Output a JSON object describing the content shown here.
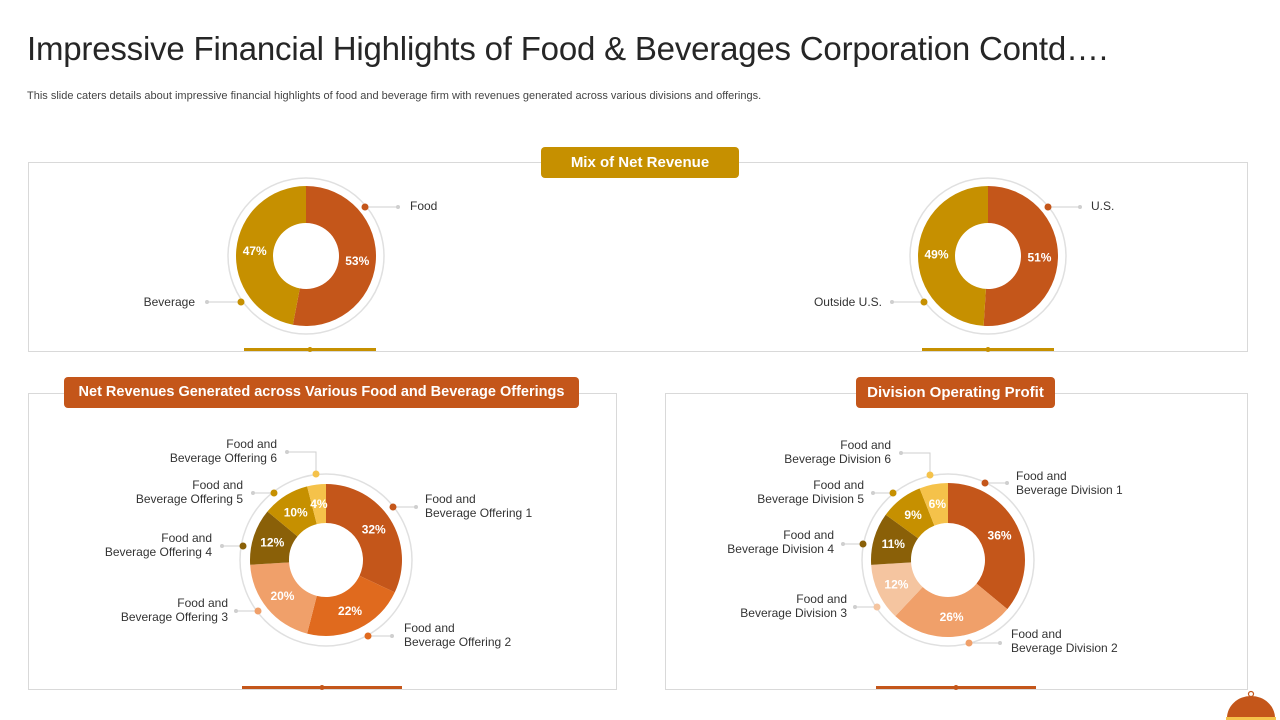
{
  "slide": {
    "title": "Impressive Financial Highlights of Food & Beverages Corporation Contd….",
    "subtitle": "This slide caters details about impressive financial highlights of food and beverage firm with revenues generated across various divisions and offerings."
  },
  "sections": {
    "mix": {
      "title": "Mix of Net Revenue",
      "color": "#c69000"
    },
    "offerings": {
      "title": "Net Revenues Generated across Various Food and Beverage Offerings",
      "color": "#c4561a"
    },
    "division": {
      "title": "Division Operating Profit",
      "color": "#c4561a"
    }
  },
  "chart_data": [
    {
      "type": "pie",
      "section": "mix",
      "slices": [
        {
          "label": "Food",
          "value": 53,
          "value_label": "53%",
          "color": "#c4561a"
        },
        {
          "label": "Beverage",
          "value": 47,
          "value_label": "47%",
          "color": "#c69000"
        }
      ]
    },
    {
      "type": "pie",
      "section": "mix",
      "slices": [
        {
          "label": "U.S.",
          "value": 51,
          "value_label": "51%",
          "color": "#c4561a"
        },
        {
          "label": "Outside U.S.",
          "value": 49,
          "value_label": "49%",
          "color": "#c69000"
        }
      ]
    },
    {
      "type": "pie",
      "section": "offerings",
      "slices": [
        {
          "label": [
            "Food and",
            "Beverage Offering 1"
          ],
          "value": 32,
          "value_label": "32%",
          "color": "#c4561a"
        },
        {
          "label": [
            "Food and",
            "Beverage Offering 2"
          ],
          "value": 22,
          "value_label": "22%",
          "color": "#e06a1e"
        },
        {
          "label": [
            "Food and",
            "Beverage Offering 3"
          ],
          "value": 20,
          "value_label": "20%",
          "color": "#f0a06a"
        },
        {
          "label": [
            "Food and",
            "Beverage Offering 4"
          ],
          "value": 12,
          "value_label": "12%",
          "color": "#8a6008"
        },
        {
          "label": [
            "Food and",
            "Beverage Offering 5"
          ],
          "value": 10,
          "value_label": "10%",
          "color": "#c69000"
        },
        {
          "label": [
            "Food and",
            "Beverage Offering 6"
          ],
          "value": 4,
          "value_label": "4%",
          "color": "#f5c24a"
        }
      ]
    },
    {
      "type": "pie",
      "section": "division",
      "slices": [
        {
          "label": [
            "Food and",
            "Beverage Division 1"
          ],
          "value": 36,
          "value_label": "36%",
          "color": "#c4561a"
        },
        {
          "label": [
            "Food and",
            "Beverage Division 2"
          ],
          "value": 26,
          "value_label": "26%",
          "color": "#f0a06a"
        },
        {
          "label": [
            "Food and",
            "Beverage Division 3"
          ],
          "value": 12,
          "value_label": "12%",
          "color": "#f5c5a0"
        },
        {
          "label": [
            "Food and",
            "Beverage Division 4"
          ],
          "value": 11,
          "value_label": "11%",
          "color": "#8a6008"
        },
        {
          "label": [
            "Food and",
            "Beverage Division 5"
          ],
          "value": 9,
          "value_label": "9%",
          "color": "#c69000"
        },
        {
          "label": [
            "Food and",
            "Beverage Division 6"
          ],
          "value": 6,
          "value_label": "6%",
          "color": "#f5c24a"
        }
      ]
    }
  ]
}
